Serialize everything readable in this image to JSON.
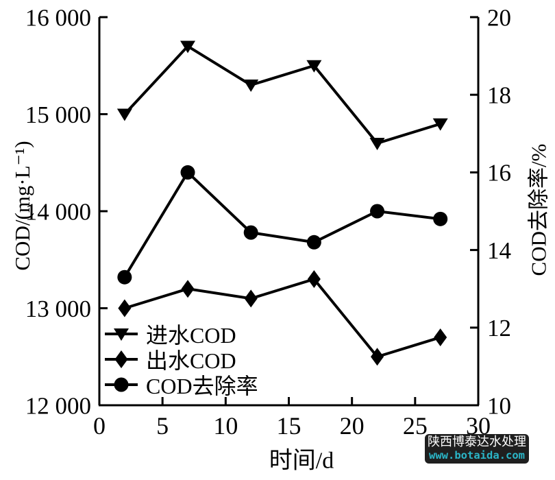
{
  "chart_data": {
    "type": "line",
    "title": "",
    "xlabel": "时间/d",
    "ylabel_left": "COD/(mg·L⁻¹)",
    "ylabel_right": "COD去除率/%",
    "xlim": [
      0,
      30
    ],
    "ylim_left": [
      12000,
      16000
    ],
    "ylim_right": [
      10,
      20
    ],
    "grid": false,
    "legend_position": "lower-left",
    "line_color": "#000000",
    "x_ticks": [
      {
        "value": 0,
        "label": "0"
      },
      {
        "value": 5,
        "label": "5"
      },
      {
        "value": 10,
        "label": "10"
      },
      {
        "value": 15,
        "label": "15"
      },
      {
        "value": 20,
        "label": "20"
      },
      {
        "value": 25,
        "label": "25"
      },
      {
        "value": 30,
        "label": "30"
      }
    ],
    "y_ticks_left": [
      {
        "value": 12000,
        "label": "12 000"
      },
      {
        "value": 13000,
        "label": "13 000"
      },
      {
        "value": 14000,
        "label": "14 000"
      },
      {
        "value": 15000,
        "label": "15 000"
      },
      {
        "value": 16000,
        "label": "16 000"
      }
    ],
    "y_ticks_right": [
      {
        "value": 10,
        "label": "10"
      },
      {
        "value": 12,
        "label": "12"
      },
      {
        "value": 14,
        "label": "14"
      },
      {
        "value": 16,
        "label": "16"
      },
      {
        "value": 18,
        "label": "18"
      },
      {
        "value": 20,
        "label": "20"
      }
    ],
    "x": [
      2,
      7,
      12,
      17,
      22,
      27
    ],
    "series": [
      {
        "slug": "inlet-cod",
        "name": "进水COD",
        "axis": "left",
        "marker": "triangle-down",
        "values": [
          15000,
          15700,
          15300,
          15500,
          14700,
          14900
        ]
      },
      {
        "slug": "outlet-cod",
        "name": "出水COD",
        "axis": "left",
        "marker": "diamond",
        "values": [
          13000,
          13200,
          13100,
          13300,
          12500,
          12700
        ]
      },
      {
        "slug": "cod-removal-rate",
        "name": "COD去除率",
        "axis": "right",
        "marker": "circle",
        "values": [
          13.3,
          16.0,
          14.45,
          14.2,
          15.0,
          14.8
        ]
      }
    ]
  },
  "watermark": {
    "line1": "陕西博泰达水处理",
    "line2": "www.botaida.com",
    "bg_color": "#1f1f1f",
    "line1_color": "#ffffff",
    "line2_color": "#2bb6c8"
  }
}
